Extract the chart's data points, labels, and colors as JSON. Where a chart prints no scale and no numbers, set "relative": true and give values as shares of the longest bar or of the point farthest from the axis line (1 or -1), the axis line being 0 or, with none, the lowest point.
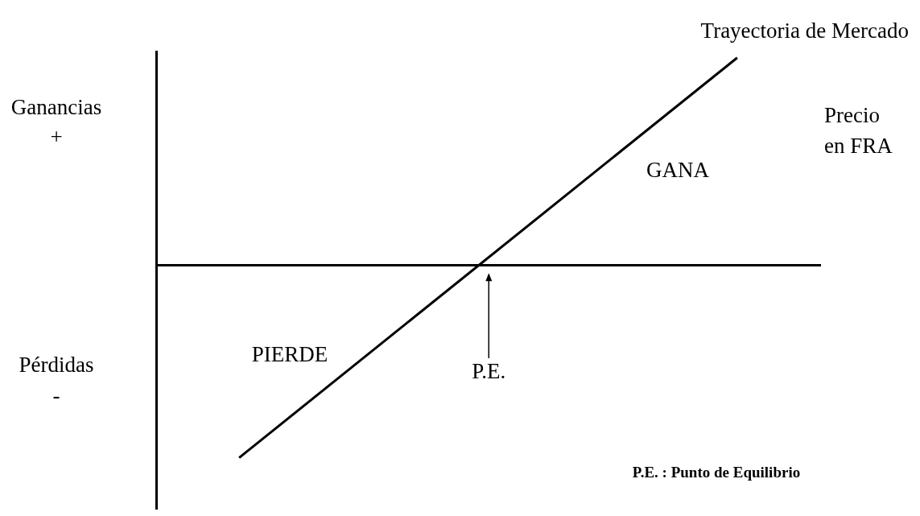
{
  "chart_data": {
    "type": "line",
    "relative": true,
    "xlabel": "Precio\nen FRA",
    "marker": "none",
    "legend": false,
    "categories": [
      null,
      null,
      null,
      null,
      null,
      null,
      null,
      null,
      null
    ],
    "series": [
      {
        "name": "Trayectoria de Mercado",
        "color": "#000000",
        "values": [
          null,
          -0.93,
          null,
          null,
          null,
          null,
          null,
          1,
          null
        ]
      }
    ],
    "annotations": [
      "Ganancias\n+",
      "Pérdidas\n-",
      "GANA",
      "PIERDE",
      "P.E.",
      "P.E. : Punto de Equilibrio"
    ]
  }
}
